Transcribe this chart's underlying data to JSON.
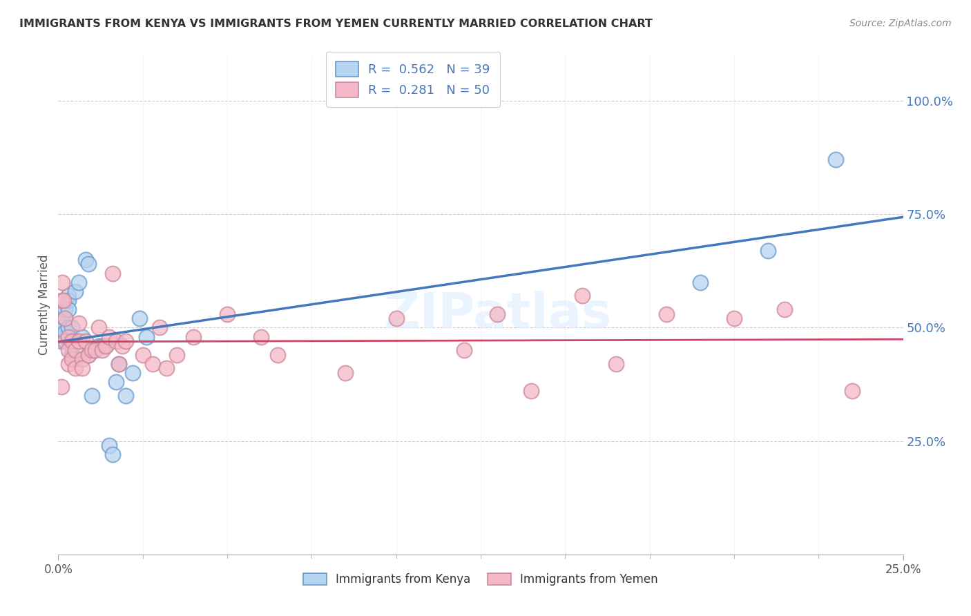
{
  "title": "IMMIGRANTS FROM KENYA VS IMMIGRANTS FROM YEMEN CURRENTLY MARRIED CORRELATION CHART",
  "source": "Source: ZipAtlas.com",
  "ylabel": "Currently Married",
  "kenya_R": 0.562,
  "kenya_N": 39,
  "yemen_R": 0.281,
  "yemen_N": 50,
  "kenya_color": "#b8d4f0",
  "kenya_edge_color": "#6699cc",
  "kenya_line_color": "#4477bb",
  "yemen_color": "#f4b8c8",
  "yemen_edge_color": "#cc8899",
  "yemen_line_color": "#cc4466",
  "background": "#ffffff",
  "watermark": "ZIPatlas",
  "grid_color": "#cccccc",
  "right_tick_color": "#4477bb",
  "kenya_x": [
    0.001,
    0.001,
    0.001,
    0.0015,
    0.0015,
    0.002,
    0.002,
    0.002,
    0.002,
    0.003,
    0.003,
    0.003,
    0.003,
    0.0035,
    0.004,
    0.004,
    0.004,
    0.005,
    0.005,
    0.006,
    0.007,
    0.008,
    0.009,
    0.009,
    0.01,
    0.012,
    0.013,
    0.014,
    0.015,
    0.016,
    0.017,
    0.018,
    0.02,
    0.022,
    0.024,
    0.026,
    0.19,
    0.21,
    0.23
  ],
  "kenya_y": [
    0.47,
    0.52,
    0.54,
    0.5,
    0.5,
    0.48,
    0.49,
    0.54,
    0.52,
    0.5,
    0.57,
    0.56,
    0.54,
    0.47,
    0.44,
    0.5,
    0.46,
    0.43,
    0.58,
    0.6,
    0.48,
    0.65,
    0.64,
    0.44,
    0.35,
    0.46,
    0.46,
    0.46,
    0.24,
    0.22,
    0.38,
    0.42,
    0.35,
    0.4,
    0.52,
    0.48,
    0.6,
    0.67,
    0.87
  ],
  "yemen_x": [
    0.001,
    0.001,
    0.0012,
    0.0015,
    0.002,
    0.002,
    0.003,
    0.003,
    0.003,
    0.004,
    0.004,
    0.005,
    0.005,
    0.006,
    0.006,
    0.007,
    0.007,
    0.008,
    0.009,
    0.01,
    0.011,
    0.012,
    0.013,
    0.014,
    0.015,
    0.016,
    0.017,
    0.018,
    0.019,
    0.02,
    0.025,
    0.028,
    0.03,
    0.032,
    0.035,
    0.04,
    0.05,
    0.06,
    0.065,
    0.085,
    0.1,
    0.12,
    0.13,
    0.14,
    0.155,
    0.165,
    0.18,
    0.2,
    0.215,
    0.235
  ],
  "yemen_y": [
    0.37,
    0.56,
    0.6,
    0.56,
    0.47,
    0.52,
    0.45,
    0.48,
    0.42,
    0.43,
    0.47,
    0.41,
    0.45,
    0.47,
    0.51,
    0.43,
    0.41,
    0.47,
    0.44,
    0.45,
    0.45,
    0.5,
    0.45,
    0.46,
    0.48,
    0.62,
    0.47,
    0.42,
    0.46,
    0.47,
    0.44,
    0.42,
    0.5,
    0.41,
    0.44,
    0.48,
    0.53,
    0.48,
    0.44,
    0.4,
    0.52,
    0.45,
    0.53,
    0.36,
    0.57,
    0.42,
    0.53,
    0.52,
    0.54,
    0.36
  ],
  "xlim": [
    0.0,
    0.25
  ],
  "ylim": [
    0.0,
    1.1
  ],
  "yticks": [
    0.25,
    0.5,
    0.75,
    1.0
  ],
  "xtick_labels_show": [
    "0.0%",
    "25.0%"
  ],
  "minor_xticks": [
    0.025,
    0.05,
    0.075,
    0.1,
    0.125,
    0.15,
    0.175,
    0.2,
    0.225
  ]
}
